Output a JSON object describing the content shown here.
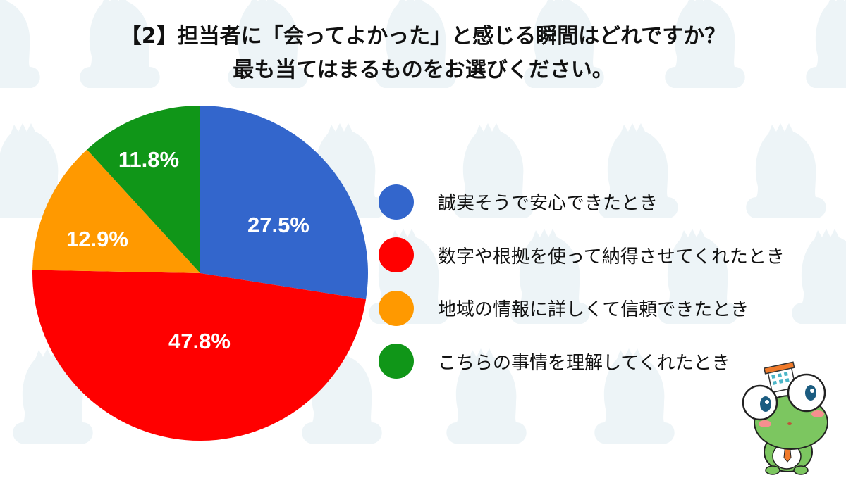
{
  "title": {
    "line1": "【2】担当者に「会ってよかった」と感じる瞬間はどれですか？",
    "line2": "最も当てはまるものをお選びください。"
  },
  "colors": {
    "blue": "#3366CC",
    "red": "#FF0000",
    "orange": "#FF9900",
    "green": "#109618",
    "background_pattern": "#EDF4F7"
  },
  "chart_data": {
    "type": "pie",
    "title": "【2】担当者に「会ってよかった」と感じる瞬間はどれですか？ 最も当てはまるものをお選びください。",
    "start_angle": "12 o'clock, clockwise",
    "legend_position": "right",
    "categories": [
      "誠実そうで安心できたとき",
      "数字や根拠を使って納得させてくれたとき",
      "地域の情報に詳しくて信頼できたとき",
      "こちらの事情を理解してくれたとき"
    ],
    "values": [
      27.5,
      47.8,
      12.9,
      11.8
    ],
    "labels": [
      "27.5%",
      "47.8%",
      "12.9%",
      "11.8%"
    ],
    "colors": [
      "#3366CC",
      "#FF0000",
      "#FF9900",
      "#109618"
    ]
  },
  "legend": {
    "items": [
      {
        "label": "誠実そうで安心できたとき",
        "color": "#3366CC"
      },
      {
        "label": "数字や根拠を使って納得させてくれたとき",
        "color": "#FF0000"
      },
      {
        "label": "地域の情報に詳しくて信頼できたとき",
        "color": "#FF9900"
      },
      {
        "label": "こちらの事情を理解してくれたとき",
        "color": "#109618"
      }
    ]
  },
  "mascot": {
    "description": "frog-mascot-with-building-hat"
  }
}
